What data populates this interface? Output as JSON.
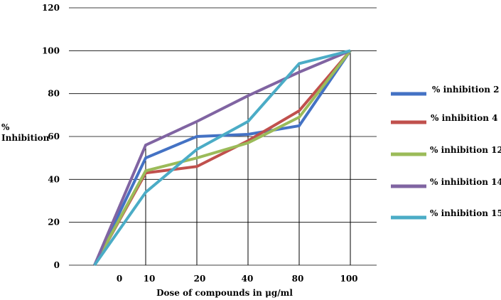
{
  "chart_data": {
    "type": "line",
    "categories": [
      "",
      "10",
      "20",
      "40",
      "80",
      "100"
    ],
    "x_tick_labels": [
      "0",
      "10",
      "20",
      "40",
      "80",
      "100"
    ],
    "series": [
      {
        "name": "% inhibition 2",
        "color": "#4472C4",
        "values": [
          0,
          50,
          60,
          61,
          65,
          100
        ]
      },
      {
        "name": "% inhibition 4",
        "color": "#C0504D",
        "values": [
          0,
          43,
          46,
          58,
          72,
          100
        ]
      },
      {
        "name": "% inhibition 12",
        "color": "#9BBB59",
        "values": [
          0,
          44,
          50,
          57,
          69,
          100
        ]
      },
      {
        "name": "% inhibition 14",
        "color": "#8064A2",
        "values": [
          0,
          56,
          67,
          79,
          90,
          100
        ]
      },
      {
        "name": "% inhibition 15",
        "color": "#4BACC6",
        "values": [
          0,
          34,
          54,
          67,
          94,
          100
        ]
      }
    ],
    "ylabel_line1": "%",
    "ylabel_line2": "Inhibition",
    "xlabel": "Dose of compounds in μg/ml",
    "ylim": [
      0,
      120
    ],
    "y_ticks": [
      0,
      20,
      40,
      60,
      80,
      100,
      120
    ],
    "grid": true,
    "legend_position": "right"
  }
}
